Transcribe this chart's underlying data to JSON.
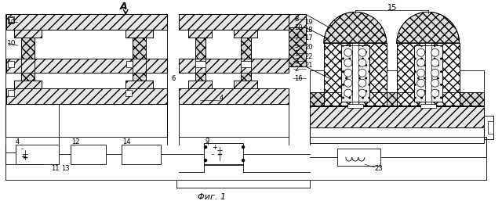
{
  "caption": "Φиг. 1",
  "bg_color": "#ffffff",
  "fig_width": 6.4,
  "fig_height": 2.66,
  "dpi": 100,
  "lw": 0.6
}
